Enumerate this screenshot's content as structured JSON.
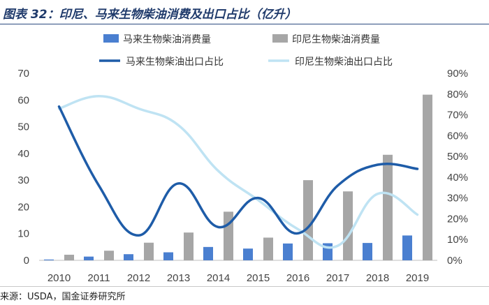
{
  "header": {
    "title": "图表 32：印尼、马来生物柴油消费及出口占比（亿升）",
    "source": "来源：USDA，国金证券研究所"
  },
  "chart_data": {
    "type": "bar",
    "categories": [
      "2010",
      "2011",
      "2012",
      "2013",
      "2014",
      "2015",
      "2016",
      "2017",
      "2018",
      "2019"
    ],
    "series": [
      {
        "name": "马来生物柴油消费量",
        "type": "bar",
        "axis": "left",
        "color": "#4a7fd0",
        "values": [
          0.3,
          1.4,
          2.3,
          3.0,
          5.0,
          4.4,
          6.3,
          6.4,
          6.5,
          9.3
        ]
      },
      {
        "name": "印尼生物柴油消费量",
        "type": "bar",
        "axis": "left",
        "color": "#a6a6a6",
        "values": [
          2.1,
          3.6,
          6.6,
          10.4,
          18.2,
          8.5,
          30.0,
          25.8,
          39.5,
          62.0
        ]
      },
      {
        "name": "马来生物柴油出口占比",
        "type": "line",
        "axis": "right",
        "color": "#1e5ca8",
        "values": [
          74,
          36,
          12,
          37,
          16,
          30,
          13,
          36,
          46,
          44
        ]
      },
      {
        "name": "印尼生物柴油出口占比",
        "type": "line",
        "axis": "right",
        "color": "#bfe3f3",
        "values": [
          73,
          79,
          73,
          65,
          43,
          29,
          15,
          7,
          32,
          22
        ]
      }
    ],
    "y_left": {
      "min": 0,
      "max": 70,
      "step": 10,
      "ticks": [
        "0",
        "10",
        "20",
        "30",
        "40",
        "50",
        "60",
        "70"
      ]
    },
    "y_right": {
      "min": 0,
      "max": 90,
      "step": 10,
      "ticks": [
        "0%",
        "10%",
        "20%",
        "30%",
        "40%",
        "50%",
        "60%",
        "70%",
        "80%",
        "90%"
      ]
    },
    "grid": false,
    "legend_position": "top"
  }
}
